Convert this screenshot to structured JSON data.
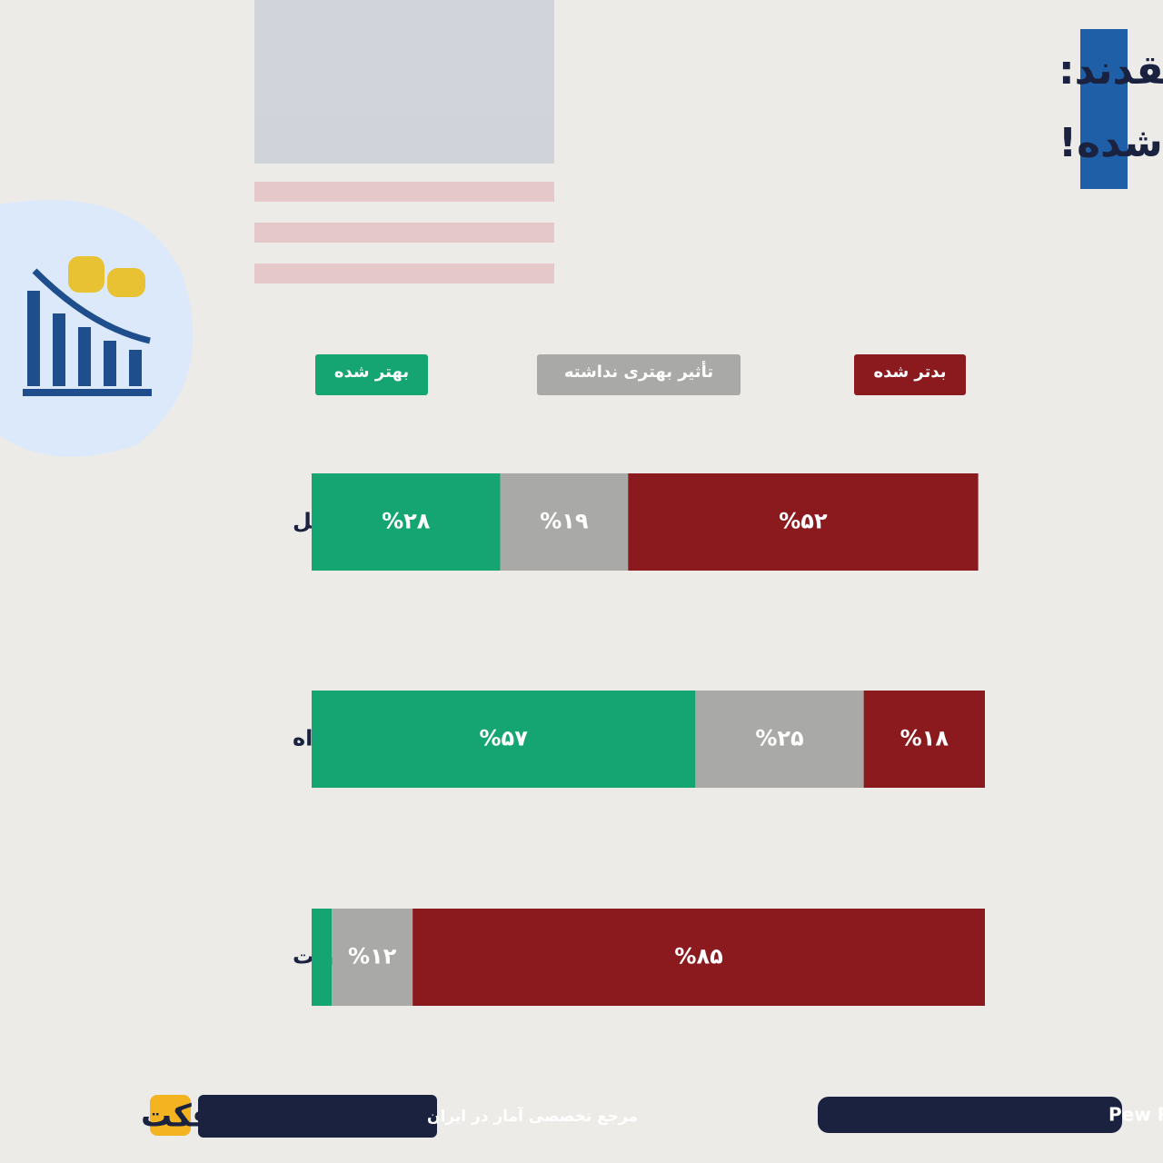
{
  "chart_data": {
    "type": "stacked-bar-horizontal",
    "title": [
      "حدود نیمی از آمریکایی‌ها معتقدند:",
      "وضعیت اقتصادی در دوران ترامپ بدتر شده!"
    ],
    "categories": [
      "کل",
      "جمهوری‌خواه",
      "دموکرات"
    ],
    "series": [
      {
        "name": "بهتر شده",
        "color": "#14a572",
        "values": [
          28,
          57,
          3
        ],
        "value_labels": [
          "%۲۸",
          "%۵۷",
          null
        ]
      },
      {
        "name": "تأثیر بهتری نداشته",
        "color": "#a9a9a7",
        "values": [
          19,
          25,
          12
        ],
        "value_labels": [
          "%۱۹",
          "%۲۵",
          "%۱۲"
        ]
      },
      {
        "name": "بدتر شده",
        "color": "#8b1a1f",
        "values": [
          52,
          18,
          85
        ],
        "value_labels": [
          "%۵۲",
          "%۱۸",
          "%۸۵"
        ]
      }
    ],
    "xlim": [
      0,
      100
    ]
  },
  "source": "منبع: Pew Research Center",
  "tagline": "مرجع تخصصی آمار در ایران",
  "brand": "آمارفکت"
}
